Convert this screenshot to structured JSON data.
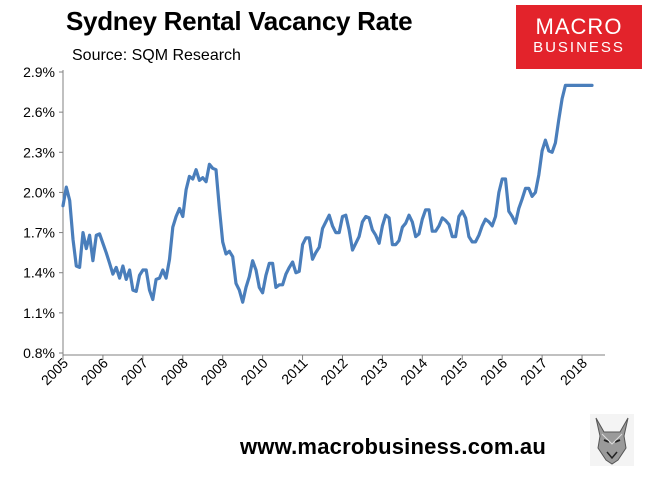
{
  "header": {
    "title": "Sydney Rental Vacancy Rate",
    "subtitle": "Source: SQM Research"
  },
  "logo": {
    "line1": "MACRO",
    "line2": "BUSINESS"
  },
  "footer": {
    "url": "www.macrobusiness.com.au"
  },
  "colors": {
    "line": "#4a7ebb",
    "brand": "#e3232b"
  },
  "chart_data": {
    "type": "line",
    "title": "Sydney Rental Vacancy Rate",
    "subtitle": "Source: SQM Research",
    "xlabel": "",
    "ylabel": "",
    "ylim": [
      0.8,
      2.9
    ],
    "xlim": [
      2005,
      2018.35
    ],
    "y_ticks": [
      "0.8%",
      "1.1%",
      "1.4%",
      "1.7%",
      "2.0%",
      "2.3%",
      "2.6%",
      "2.9%"
    ],
    "x_ticks": [
      "2005",
      "2006",
      "2007",
      "2008",
      "2009",
      "2010",
      "2011",
      "2012",
      "2013",
      "2014",
      "2015",
      "2016",
      "2017",
      "2018"
    ],
    "grid": false,
    "series": [
      {
        "x": [
          2005.0,
          2005.083,
          2005.167,
          2005.25,
          2005.333,
          2005.417,
          2005.5,
          2005.583,
          2005.667,
          2005.75,
          2005.833,
          2005.917,
          2006.0,
          2006.083,
          2006.167,
          2006.25,
          2006.333,
          2006.417,
          2006.5,
          2006.583,
          2006.667,
          2006.75,
          2006.833,
          2006.917,
          2007.0,
          2007.083,
          2007.167,
          2007.25,
          2007.333,
          2007.417,
          2007.5,
          2007.583,
          2007.667,
          2007.75,
          2007.833,
          2007.917,
          2008.0,
          2008.083,
          2008.167,
          2008.25,
          2008.333,
          2008.417,
          2008.5,
          2008.583,
          2008.667,
          2008.75,
          2008.833,
          2008.917,
          2009.0,
          2009.083,
          2009.167,
          2009.25,
          2009.333,
          2009.417,
          2009.5,
          2009.583,
          2009.667,
          2009.75,
          2009.833,
          2009.917,
          2010.0,
          2010.083,
          2010.167,
          2010.25,
          2010.333,
          2010.417,
          2010.5,
          2010.583,
          2010.667,
          2010.75,
          2010.833,
          2010.917,
          2011.0,
          2011.083,
          2011.167,
          2011.25,
          2011.333,
          2011.417,
          2011.5,
          2011.583,
          2011.667,
          2011.75,
          2011.833,
          2011.917,
          2012.0,
          2012.083,
          2012.167,
          2012.25,
          2012.333,
          2012.417,
          2012.5,
          2012.583,
          2012.667,
          2012.75,
          2012.833,
          2012.917,
          2013.0,
          2013.083,
          2013.167,
          2013.25,
          2013.333,
          2013.417,
          2013.5,
          2013.583,
          2013.667,
          2013.75,
          2013.833,
          2013.917,
          2014.0,
          2014.083,
          2014.167,
          2014.25,
          2014.333,
          2014.417,
          2014.5,
          2014.583,
          2014.667,
          2014.75,
          2014.833,
          2014.917,
          2015.0,
          2015.083,
          2015.167,
          2015.25,
          2015.333,
          2015.417,
          2015.5,
          2015.583,
          2015.667,
          2015.75,
          2015.833,
          2015.917,
          2016.0,
          2016.083,
          2016.167,
          2016.25,
          2016.333,
          2016.417,
          2016.5,
          2016.583,
          2016.667,
          2016.75,
          2016.833,
          2016.917,
          2017.0,
          2017.083,
          2017.167,
          2017.25,
          2017.333,
          2017.417,
          2017.5,
          2017.583,
          2017.667,
          2017.75,
          2017.833,
          2017.917,
          2018.0,
          2018.083,
          2018.167,
          2018.25
        ],
        "values": [
          1.9,
          2.04,
          1.94,
          1.65,
          1.45,
          1.44,
          1.7,
          1.58,
          1.68,
          1.49,
          1.68,
          1.69,
          1.62,
          1.55,
          1.47,
          1.39,
          1.44,
          1.36,
          1.45,
          1.35,
          1.42,
          1.27,
          1.26,
          1.38,
          1.42,
          1.42,
          1.27,
          1.2,
          1.35,
          1.36,
          1.42,
          1.36,
          1.5,
          1.74,
          1.82,
          1.88,
          1.82,
          2.02,
          2.12,
          2.1,
          2.17,
          2.09,
          2.11,
          2.08,
          2.21,
          2.18,
          2.17,
          1.88,
          1.63,
          1.54,
          1.56,
          1.52,
          1.32,
          1.27,
          1.18,
          1.29,
          1.37,
          1.49,
          1.42,
          1.29,
          1.25,
          1.38,
          1.47,
          1.47,
          1.29,
          1.31,
          1.31,
          1.39,
          1.44,
          1.48,
          1.4,
          1.41,
          1.61,
          1.66,
          1.66,
          1.5,
          1.55,
          1.59,
          1.73,
          1.78,
          1.83,
          1.75,
          1.7,
          1.7,
          1.82,
          1.83,
          1.72,
          1.57,
          1.62,
          1.67,
          1.78,
          1.82,
          1.81,
          1.72,
          1.68,
          1.62,
          1.75,
          1.83,
          1.81,
          1.61,
          1.61,
          1.64,
          1.74,
          1.77,
          1.83,
          1.78,
          1.67,
          1.69,
          1.8,
          1.87,
          1.87,
          1.71,
          1.71,
          1.75,
          1.81,
          1.79,
          1.76,
          1.67,
          1.67,
          1.82,
          1.86,
          1.81,
          1.67,
          1.63,
          1.63,
          1.68,
          1.75,
          1.8,
          1.78,
          1.75,
          1.82,
          2.0,
          2.1,
          2.1,
          1.86,
          1.82,
          1.77,
          1.88,
          1.95,
          2.03,
          2.03,
          1.97,
          2.0,
          2.13,
          2.31,
          2.39,
          2.31,
          2.3,
          2.37,
          2.54,
          2.7,
          2.8,
          2.8,
          2.8,
          2.8,
          2.8,
          2.8,
          2.8,
          2.8,
          2.8
        ]
      }
    ]
  }
}
